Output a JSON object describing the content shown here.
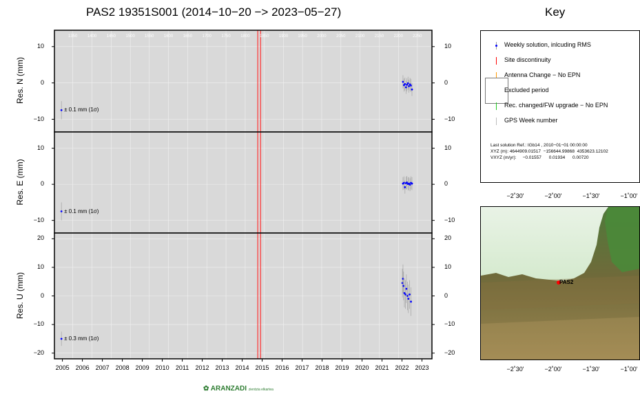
{
  "title": "PAS2 19351S001 (2014−10−20 −> 2023−05−27)",
  "key_title": "Key",
  "panels": [
    {
      "id": "n",
      "ylabel": "Res. N (mm)",
      "yticks": [
        10,
        0,
        -10
      ],
      "ylim": [
        -13.5,
        14.5
      ],
      "rms": "± 0.1 mm (1σ)"
    },
    {
      "id": "e",
      "ylabel": "Res. E (mm)",
      "yticks": [
        10,
        0,
        -10
      ],
      "ylim": [
        -13.5,
        14.5
      ],
      "rms": "± 0.1 mm (1σ)"
    },
    {
      "id": "u",
      "ylabel": "Res. U (mm)",
      "yticks": [
        20,
        10,
        0,
        -10,
        -20
      ],
      "ylim": [
        -22,
        22
      ],
      "rms": "± 0.3 mm (1σ)"
    }
  ],
  "x_axis": {
    "ticks": [
      "2005",
      "2006",
      "2007",
      "2008",
      "2009",
      "2010",
      "2011",
      "2012",
      "2013",
      "2014",
      "2015",
      "2016",
      "2017",
      "2018",
      "2019",
      "2020",
      "2021",
      "2022",
      "2023"
    ],
    "xlim": [
      2004.6,
      2023.5
    ]
  },
  "gps_weeks": {
    "labels": [
      "1350",
      "1400",
      "1450",
      "1500",
      "1550",
      "1600",
      "1650",
      "1700",
      "1750",
      "1800",
      "1850",
      "1900",
      "1950",
      "2000",
      "2050",
      "2100",
      "2150",
      "2200",
      "2250"
    ],
    "years": [
      2005.52,
      2006.48,
      2007.44,
      2008.4,
      2009.35,
      2010.31,
      2011.27,
      2012.23,
      2013.19,
      2014.15,
      2015.11,
      2016.07,
      2017.02,
      2017.98,
      2018.94,
      2019.9,
      2020.86,
      2021.82,
      2022.77
    ]
  },
  "discontinuity_years": [
    2014.78,
    2014.92
  ],
  "chart_data": {
    "type": "scatter",
    "title": "PAS2 19351S001 (2014−10−20 −> 2023−05−27)",
    "xlabel": "",
    "x_ticks": [
      "2005",
      "2006",
      "2007",
      "2008",
      "2009",
      "2010",
      "2011",
      "2012",
      "2013",
      "2014",
      "2015",
      "2016",
      "2017",
      "2018",
      "2019",
      "2020",
      "2021",
      "2022",
      "2023"
    ],
    "series": [
      {
        "name": "Res. N (mm)",
        "x": [
          2022.05,
          2022.1,
          2022.15,
          2022.2,
          2022.25,
          2022.3,
          2022.35,
          2022.4,
          2022.45,
          2022.5
        ],
        "y": [
          0.3,
          -0.6,
          -0.3,
          -1.2,
          -0.5,
          -0.1,
          -0.9,
          -0.4,
          -0.7,
          -1.8
        ]
      },
      {
        "name": "Res. E (mm)",
        "x": [
          2022.05,
          2022.1,
          2022.15,
          2022.2,
          2022.25,
          2022.3,
          2022.35,
          2022.4,
          2022.45,
          2022.5
        ],
        "y": [
          0.2,
          0.4,
          -0.8,
          0.3,
          0.5,
          0.1,
          0.2,
          -0.1,
          0.4,
          0.2
        ]
      },
      {
        "name": "Res. U (mm)",
        "x": [
          2022.02,
          2022.05,
          2022.08,
          2022.12,
          2022.18,
          2022.22,
          2022.28,
          2022.32,
          2022.38,
          2022.45
        ],
        "y": [
          4.5,
          6.0,
          3.5,
          1.0,
          0.5,
          2.5,
          0.0,
          -1.0,
          0.5,
          -2.0
        ]
      }
    ],
    "rms_markers": {
      "n": -7.5,
      "e": -7.5,
      "u": -15
    }
  },
  "key": {
    "items": [
      {
        "label": "Weekly solution, inlcuding RMS",
        "color": "#0000ff"
      },
      {
        "label": "Site discontinuity",
        "color": "#ff0000"
      },
      {
        "label": "Antenna Change − No EPN",
        "color": "#ff9900"
      },
      {
        "label": "Excluded period",
        "color": "#777777"
      },
      {
        "label": "Rec. changed/FW upgrade − No EPN",
        "color": "#22cc22"
      },
      {
        "label": "GPS Week number",
        "color": "#bbbbbb"
      }
    ],
    "info_line1": "Last solution Ref.: IGb14 , 2010−01−01 00:00:00",
    "info_line2": "XYZ (m): 4644909.01517  −156644.99868  4353623.12102",
    "info_line3": "VXYZ (m/yr):     −0.01557      0.01934      0.00720"
  },
  "map": {
    "station": "PAS2",
    "lon_labels": [
      "−2˚30'",
      "−2˚00'",
      "−1˚30'",
      "−1˚00'"
    ]
  },
  "logo": {
    "text": "ARANZADI",
    "sub": "zientzia elkartea"
  }
}
